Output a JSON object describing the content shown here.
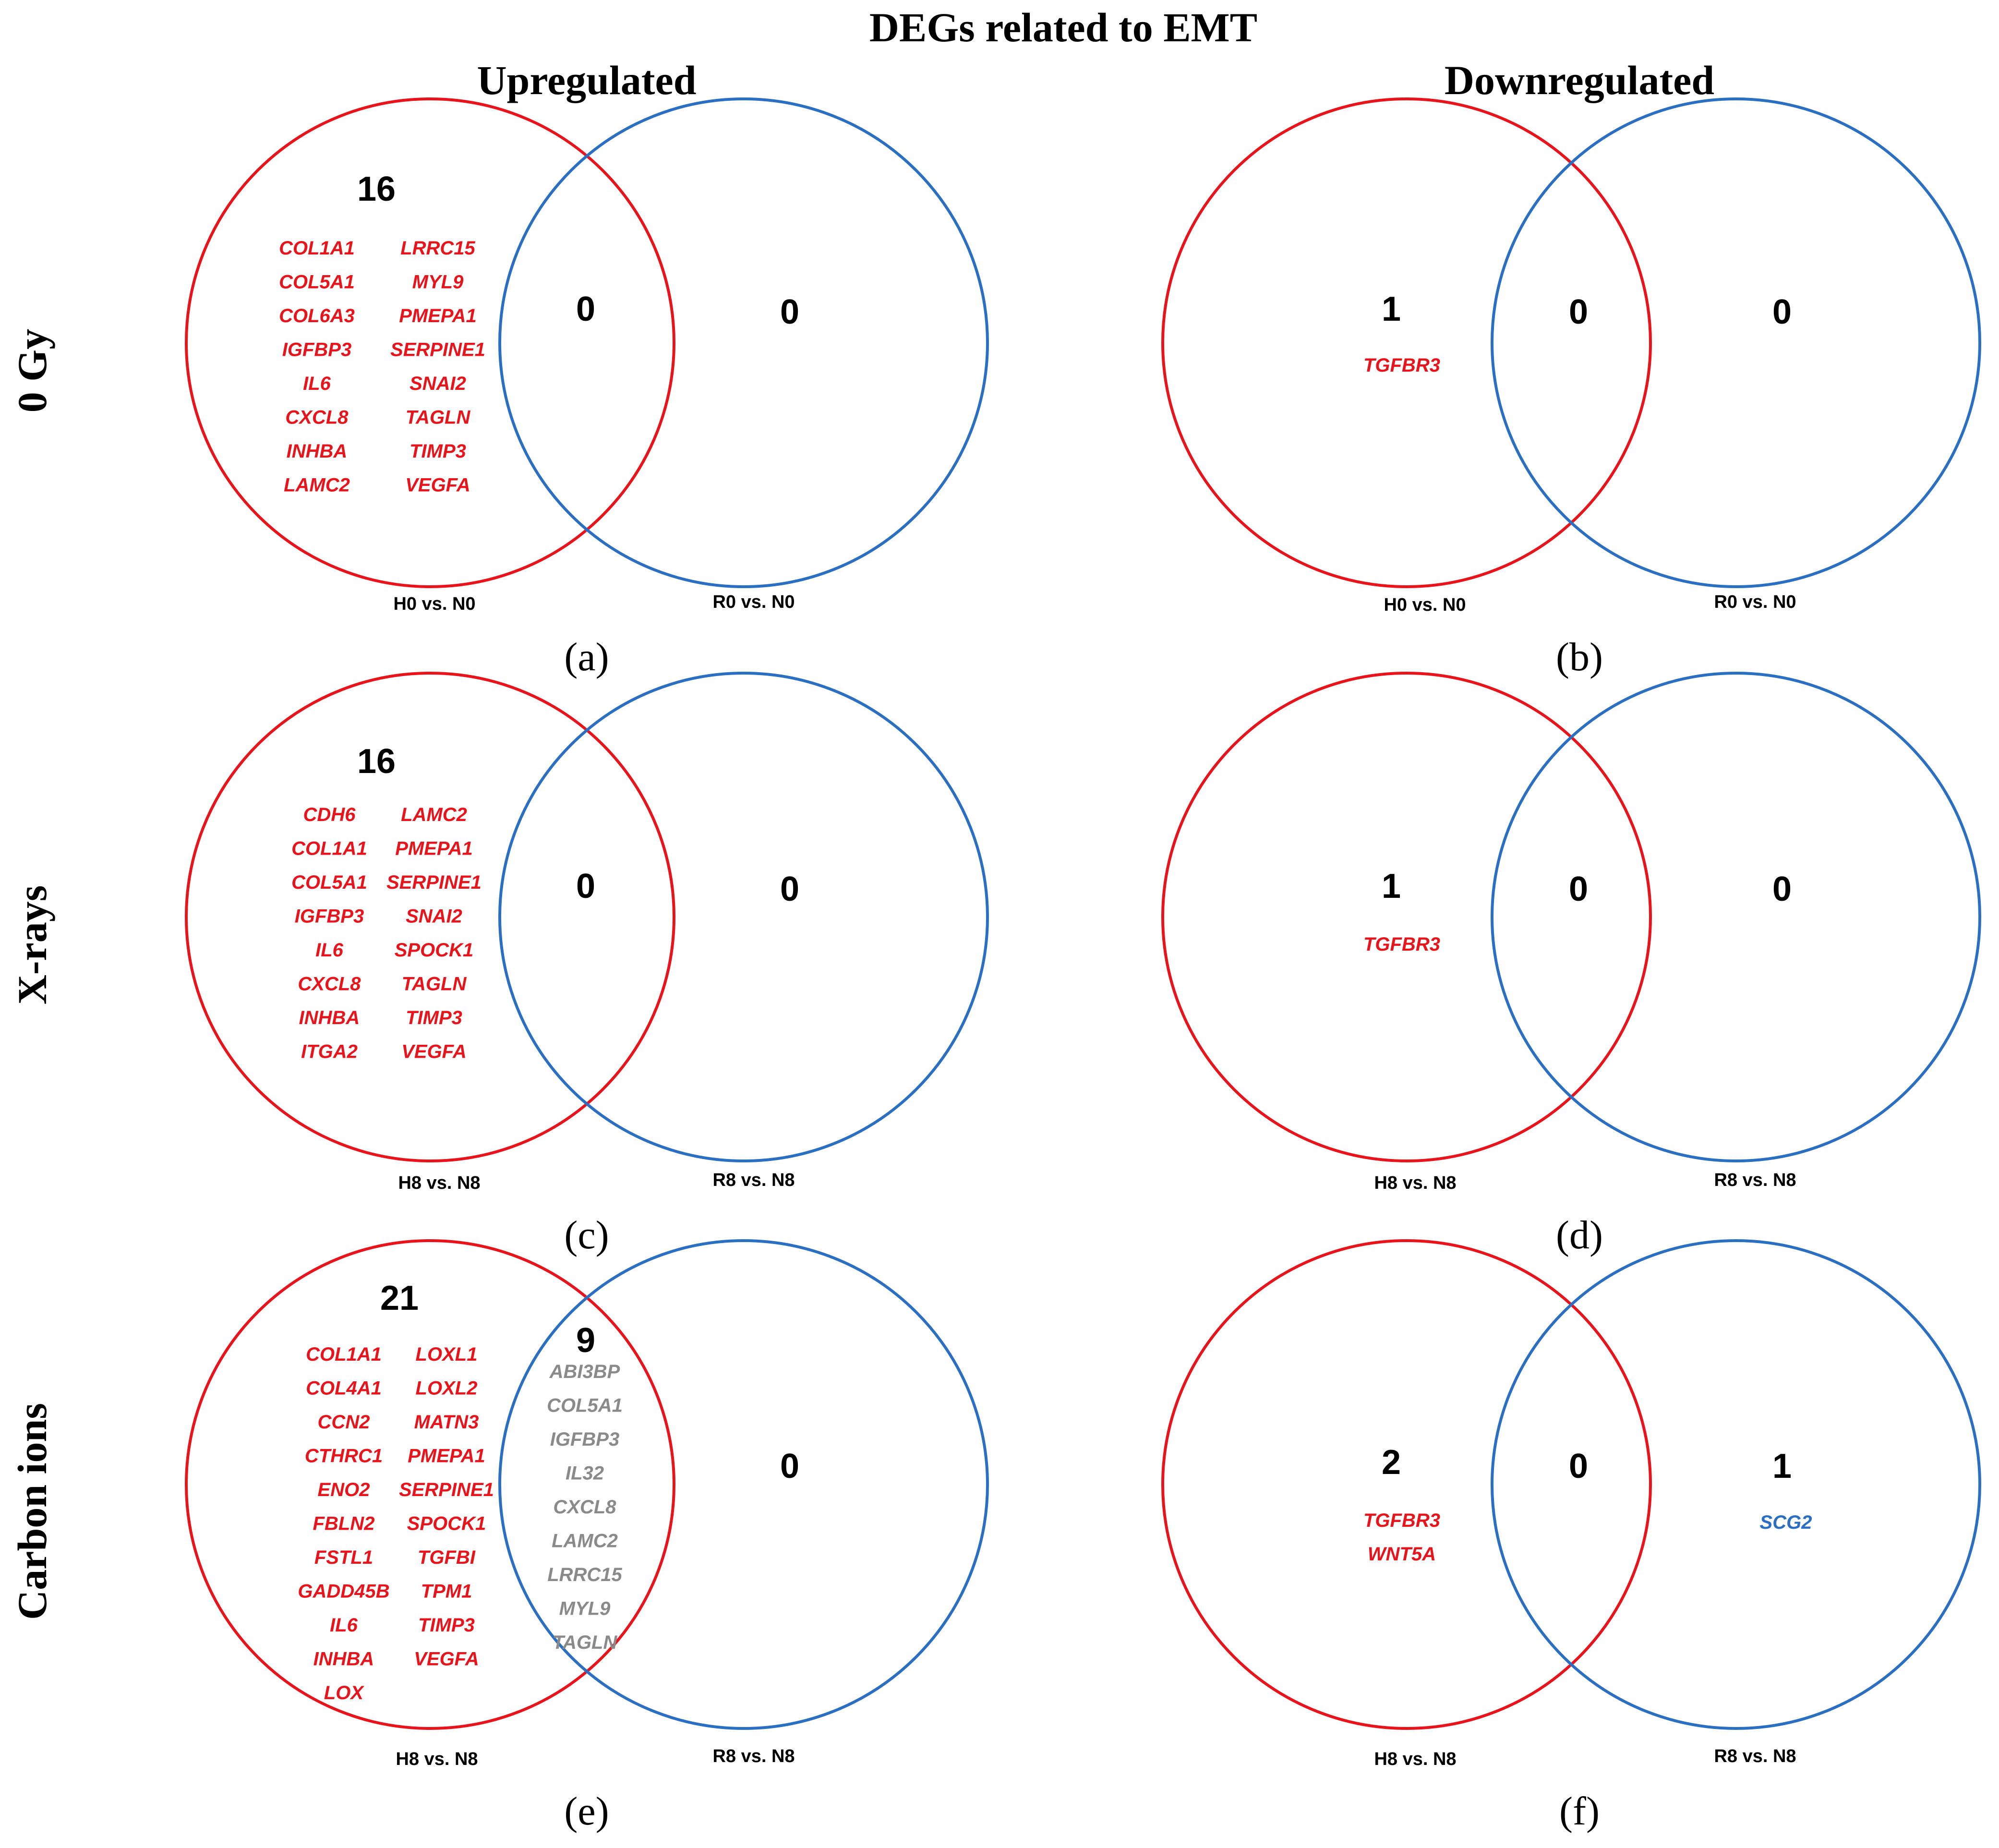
{
  "title": "DEGs related to EMT",
  "columns": {
    "up": "Upregulated",
    "down": "Downregulated"
  },
  "rows": [
    "0 Gy",
    "X-rays",
    "Carbon ions"
  ],
  "colors": {
    "left_circle": "#e8141b",
    "right_circle": "#2b6fc2",
    "gray_gene": "#8a8a8a"
  },
  "panels": {
    "a": {
      "label": "(a)",
      "left_label": "H0 vs. N0",
      "right_label": "R0 vs. N0",
      "left_count": "16",
      "overlap_count": "0",
      "right_count": "0",
      "left_genes_col1": [
        "COL1A1",
        "COL5A1",
        "COL6A3",
        "IGFBP3",
        "IL6",
        "CXCL8",
        "INHBA",
        "LAMC2"
      ],
      "left_genes_col2": [
        "LRRC15",
        "MYL9",
        "PMEPA1",
        "SERPINE1",
        "SNAI2",
        "TAGLN",
        "TIMP3",
        "VEGFA"
      ]
    },
    "b": {
      "label": "(b)",
      "left_label": "H0 vs. N0",
      "right_label": "R0 vs. N0",
      "left_count": "1",
      "overlap_count": "0",
      "right_count": "0",
      "left_genes": [
        "TGFBR3"
      ]
    },
    "c": {
      "label": "(c)",
      "left_label": "H8 vs. N8",
      "right_label": "R8 vs. N8",
      "left_count": "16",
      "overlap_count": "0",
      "right_count": "0",
      "left_genes_col1": [
        "CDH6",
        "COL1A1",
        "COL5A1",
        "IGFBP3",
        "IL6",
        "CXCL8",
        "INHBA",
        "ITGA2"
      ],
      "left_genes_col2": [
        "LAMC2",
        "PMEPA1",
        "SERPINE1",
        "SNAI2",
        "SPOCK1",
        "TAGLN",
        "TIMP3",
        "VEGFA"
      ]
    },
    "d": {
      "label": "(d)",
      "left_label": "H8 vs. N8",
      "right_label": "R8 vs. N8",
      "left_count": "1",
      "overlap_count": "0",
      "right_count": "0",
      "left_genes": [
        "TGFBR3"
      ]
    },
    "e": {
      "label": "(e)",
      "left_label": "H8 vs. N8",
      "right_label": "R8 vs. N8",
      "left_count": "21",
      "overlap_count": "9",
      "right_count": "0",
      "left_genes_col1": [
        "COL1A1",
        "COL4A1",
        "CCN2",
        "CTHRC1",
        "ENO2",
        "FBLN2",
        "FSTL1",
        "GADD45B",
        "IL6",
        "INHBA",
        "LOX"
      ],
      "left_genes_col2": [
        "LOXL1",
        "LOXL2",
        "MATN3",
        "PMEPA1",
        "SERPINE1",
        "SPOCK1",
        "TGFBI",
        "TPM1",
        "TIMP3",
        "VEGFA"
      ],
      "overlap_genes": [
        "ABI3BP",
        "COL5A1",
        "IGFBP3",
        "IL32",
        "CXCL8",
        "LAMC2",
        "LRRC15",
        "MYL9",
        "TAGLN"
      ]
    },
    "f": {
      "label": "(f)",
      "left_label": "H8 vs. N8",
      "right_label": "R8 vs. N8",
      "left_count": "2",
      "overlap_count": "0",
      "right_count": "1",
      "left_genes": [
        "TGFBR3",
        "WNT5A"
      ],
      "right_genes": [
        "SCG2"
      ]
    }
  }
}
